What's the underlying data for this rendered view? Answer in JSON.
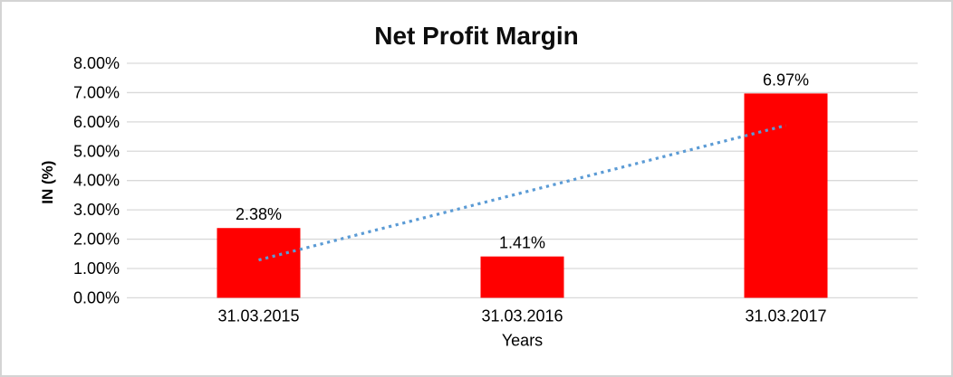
{
  "chart_data": {
    "type": "bar",
    "title": "Net Profit Margin",
    "xlabel": "Years",
    "ylabel": "IN (%)",
    "categories": [
      "31.03.2015",
      "31.03.2016",
      "31.03.2017"
    ],
    "values": [
      2.38,
      1.41,
      6.97
    ],
    "data_labels": [
      "2.38%",
      "1.41%",
      "6.97%"
    ],
    "ylim": [
      0,
      8
    ],
    "ytick_step": 1,
    "ytick_labels": [
      "0.00%",
      "1.00%",
      "2.00%",
      "3.00%",
      "4.00%",
      "5.00%",
      "6.00%",
      "7.00%",
      "8.00%"
    ],
    "grid": true,
    "legend_position": "none",
    "bar_color": "#ff0000",
    "gridline_color": "#d9d9d9",
    "text_color": "#000000",
    "trendline": {
      "type": "linear",
      "style": "dotted",
      "color": "#5b9bd5",
      "start_value": 1.29,
      "end_value": 5.88
    }
  }
}
